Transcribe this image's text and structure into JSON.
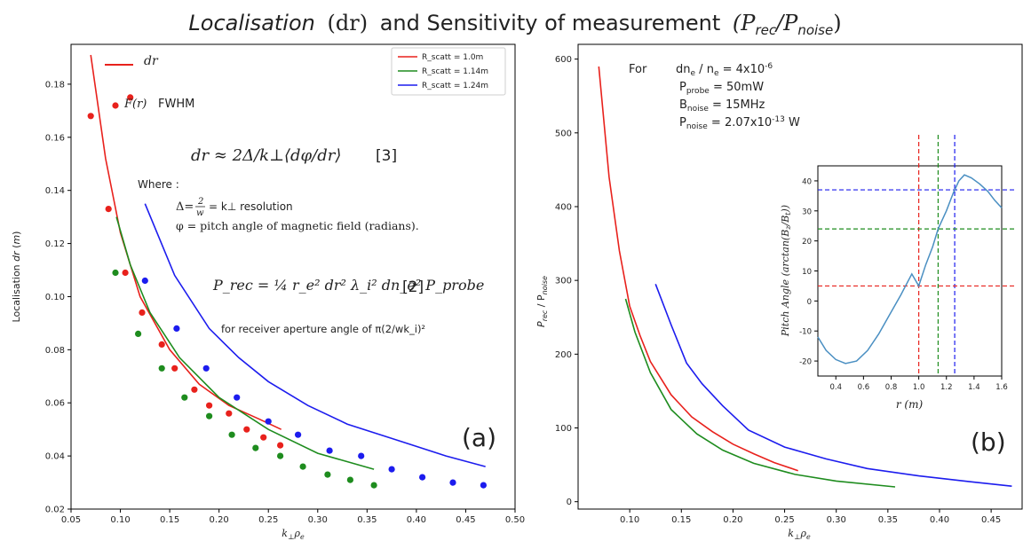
{
  "title": {
    "part1": "Localisation",
    "part2": "(dr)",
    "part3": "and Sensitivity of measurement",
    "part4": "(P",
    "part4_sub1": "rec",
    "part4_slash": "/P",
    "part4_sub2": "noise",
    "part4_end": ")"
  },
  "colors": {
    "r1": "#e8211c",
    "r2": "#1e8c1e",
    "r3": "#1c1cee",
    "inset_line": "#4a8fc2"
  },
  "left_annotations": {
    "legend_dr_line": "dr",
    "legend_fwhm_symbol": "F(r)",
    "legend_fwhm_text": "FWHM",
    "eq1": "dr ≈ 2Δ/k⊥⟨dφ/dr⟩",
    "eq1_ref": "[3]",
    "where": "Where :",
    "delta_line_a": "Δ=",
    "delta_num": "2",
    "delta_den": "w",
    "delta_line_b": "= k⊥ resolution",
    "phi_line": "φ = pitch angle of magnetic field (radians).",
    "prec_eq": "P_rec = ¼ r_e² dr² λ_i² dn_e² P_probe",
    "prec_ref": "[2]",
    "aperture": "for receiver aperture angle of π(2/wk_i)²",
    "panel_label": "(a)"
  },
  "right_annotations": {
    "for": "For",
    "dne": "dn",
    "dne_sub": "e",
    "dne_mid": " / n",
    "dne_sub2": "e",
    "dne_val": " = 4x10",
    "dne_exp": "-6",
    "pprobe": "P",
    "pprobe_sub": "probe",
    "pprobe_val": " = 50mW",
    "bnoise": "B",
    "bnoise_sub": "noise",
    "bnoise_val": " = 15MHz",
    "pnoise": "P",
    "pnoise_sub": "noise",
    "pnoise_val": " = 2.07x10",
    "pnoise_exp": "-13",
    "pnoise_unit": " W",
    "panel_label": "(b)"
  },
  "chart_data": [
    {
      "type": "line",
      "xlabel": "k⊥ρe",
      "ylabel": "Localisation dr (m)",
      "xlim": [
        0.05,
        0.5
      ],
      "ylim": [
        0.02,
        0.195
      ],
      "xticks": [
        0.05,
        0.1,
        0.15,
        0.2,
        0.25,
        0.3,
        0.35,
        0.4,
        0.45,
        0.5
      ],
      "xtick_labels": [
        "0.05",
        "0.10",
        "0.15",
        "0.20",
        "0.25",
        "0.30",
        "0.35",
        "0.40",
        "0.45",
        "0.50"
      ],
      "yticks": [
        0.02,
        0.04,
        0.06,
        0.08,
        0.1,
        0.12,
        0.14,
        0.16,
        0.18
      ],
      "ytick_labels": [
        "0.02",
        "0.04",
        "0.06",
        "0.08",
        "0.10",
        "0.12",
        "0.14",
        "0.16",
        "0.18"
      ],
      "legend": {
        "placement": "top-right",
        "entries": [
          "R_scatt = 1.0m",
          "R_scatt = 1.14m",
          "R_scatt = 1.24m"
        ]
      },
      "series": [
        {
          "name": "R_scatt = 1.0m",
          "color": "#e8211c",
          "x": [
            0.07,
            0.085,
            0.1,
            0.12,
            0.15,
            0.18,
            0.21,
            0.24,
            0.263
          ],
          "y": [
            0.191,
            0.152,
            0.124,
            0.1,
            0.08,
            0.067,
            0.059,
            0.054,
            0.05
          ]
        },
        {
          "name": "R_scatt = 1.14m",
          "color": "#1e8c1e",
          "x": [
            0.096,
            0.11,
            0.13,
            0.16,
            0.2,
            0.25,
            0.3,
            0.357
          ],
          "y": [
            0.13,
            0.112,
            0.094,
            0.077,
            0.062,
            0.05,
            0.041,
            0.035
          ]
        },
        {
          "name": "R_scatt = 1.24m",
          "color": "#1c1cee",
          "x": [
            0.125,
            0.155,
            0.19,
            0.22,
            0.25,
            0.29,
            0.33,
            0.38,
            0.43,
            0.47
          ],
          "y": [
            0.135,
            0.108,
            0.088,
            0.077,
            0.068,
            0.059,
            0.052,
            0.046,
            0.04,
            0.036
          ]
        }
      ],
      "scatter_series": [
        {
          "name": "F(r) FWHM R_scatt = 1.0m",
          "color": "#e8211c",
          "x": [
            0.07,
            0.088,
            0.105,
            0.11,
            0.122,
            0.142,
            0.155,
            0.175,
            0.19,
            0.21,
            0.228,
            0.245,
            0.262
          ],
          "y": [
            0.168,
            0.133,
            0.109,
            0.175,
            0.094,
            0.082,
            0.073,
            0.065,
            0.059,
            0.056,
            0.05,
            0.047,
            0.044
          ]
        },
        {
          "name": "F(r) FWHM R_scatt = 1.14m",
          "color": "#1e8c1e",
          "x": [
            0.095,
            0.118,
            0.142,
            0.165,
            0.19,
            0.213,
            0.237,
            0.262,
            0.285,
            0.31,
            0.333,
            0.357
          ],
          "y": [
            0.109,
            0.086,
            0.073,
            0.062,
            0.055,
            0.048,
            0.043,
            0.04,
            0.036,
            0.033,
            0.031,
            0.029
          ]
        },
        {
          "name": "F(r) FWHM R_scatt = 1.24m",
          "color": "#1c1cee",
          "x": [
            0.125,
            0.157,
            0.187,
            0.218,
            0.25,
            0.28,
            0.312,
            0.344,
            0.375,
            0.406,
            0.437,
            0.468
          ],
          "y": [
            0.106,
            0.088,
            0.073,
            0.062,
            0.053,
            0.048,
            0.042,
            0.04,
            0.035,
            0.032,
            0.03,
            0.029
          ]
        }
      ]
    },
    {
      "type": "line",
      "xlabel": "k⊥ρe",
      "ylabel": "Prec / Pnoise",
      "xlim": [
        0.05,
        0.48
      ],
      "ylim": [
        -10,
        620
      ],
      "xticks": [
        0.1,
        0.15,
        0.2,
        0.25,
        0.3,
        0.35,
        0.4,
        0.45
      ],
      "xtick_labels": [
        "0.10",
        "0.15",
        "0.20",
        "0.25",
        "0.30",
        "0.35",
        "0.40",
        "0.45"
      ],
      "yticks": [
        0,
        100,
        200,
        300,
        400,
        500,
        600
      ],
      "ytick_labels": [
        "0",
        "100",
        "200",
        "300",
        "400",
        "500",
        "600"
      ],
      "series": [
        {
          "name": "R_scatt = 1.0m",
          "color": "#e8211c",
          "x": [
            0.07,
            0.08,
            0.09,
            0.1,
            0.11,
            0.12,
            0.14,
            0.16,
            0.18,
            0.2,
            0.22,
            0.24,
            0.263
          ],
          "y": [
            590,
            440,
            340,
            265,
            225,
            190,
            145,
            115,
            95,
            78,
            65,
            53,
            42
          ]
        },
        {
          "name": "R_scatt = 1.14m",
          "color": "#1e8c1e",
          "x": [
            0.096,
            0.105,
            0.12,
            0.14,
            0.165,
            0.19,
            0.22,
            0.26,
            0.3,
            0.357
          ],
          "y": [
            275,
            230,
            175,
            125,
            92,
            70,
            52,
            37,
            28,
            20
          ]
        },
        {
          "name": "R_scatt = 1.24m",
          "color": "#1c1cee",
          "x": [
            0.125,
            0.14,
            0.155,
            0.17,
            0.19,
            0.215,
            0.25,
            0.29,
            0.33,
            0.38,
            0.43,
            0.47
          ],
          "y": [
            295,
            240,
            188,
            160,
            130,
            97,
            74,
            58,
            45,
            35,
            27,
            21
          ]
        }
      ]
    },
    {
      "type": "line",
      "inset_of": 1,
      "xlabel": "r (m)",
      "ylabel": "Pitch Angle (arctan(Bz/Bt))",
      "xlim": [
        0.27,
        1.6
      ],
      "ylim": [
        -25,
        45
      ],
      "xticks": [
        0.4,
        0.6,
        0.8,
        1.0,
        1.2,
        1.4,
        1.6
      ],
      "xtick_labels": [
        "0.4",
        "0.6",
        "0.8",
        "1.0",
        "1.2",
        "1.4",
        "1.6"
      ],
      "yticks": [
        -20,
        -10,
        0,
        10,
        20,
        30,
        40
      ],
      "ytick_labels": [
        "-20",
        "-10",
        "0",
        "10",
        "20",
        "30",
        "40"
      ],
      "series": [
        {
          "color": "#4a8fc2",
          "x": [
            0.27,
            0.33,
            0.4,
            0.47,
            0.55,
            0.63,
            0.71,
            0.79,
            0.87,
            0.95,
            1.0,
            1.05,
            1.1,
            1.14,
            1.2,
            1.25,
            1.29,
            1.33,
            1.38,
            1.44,
            1.5,
            1.55,
            1.6
          ],
          "y": [
            -12,
            -16.5,
            -19.5,
            -20.8,
            -20,
            -16.5,
            -11,
            -4.5,
            2,
            9,
            5,
            12,
            18,
            24,
            30,
            36,
            40,
            42,
            41,
            39,
            36.5,
            33.5,
            31
          ]
        }
      ],
      "ref_lines": [
        {
          "axis": "x",
          "value": 1.0,
          "color": "#e8211c"
        },
        {
          "axis": "x",
          "value": 1.14,
          "color": "#1e8c1e"
        },
        {
          "axis": "x",
          "value": 1.26,
          "color": "#1c1cee"
        },
        {
          "axis": "y",
          "value": 5,
          "color": "#e8211c"
        },
        {
          "axis": "y",
          "value": 24,
          "color": "#1e8c1e"
        },
        {
          "axis": "y",
          "value": 37,
          "color": "#1c1cee"
        }
      ]
    }
  ]
}
